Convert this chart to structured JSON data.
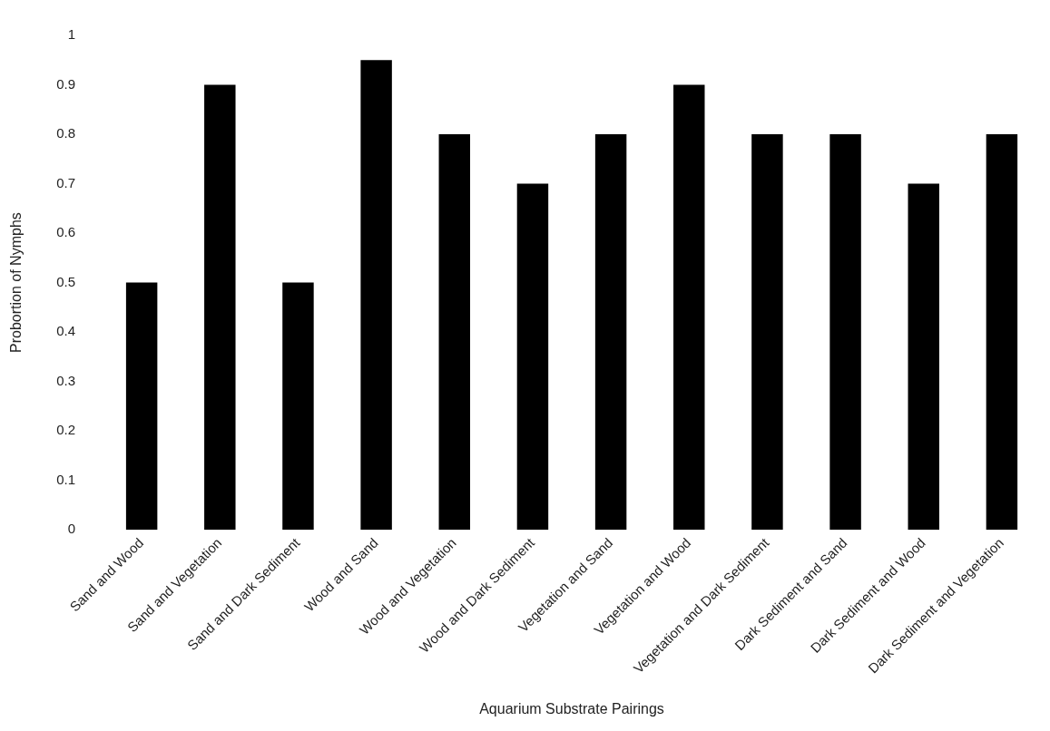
{
  "chart_data": {
    "type": "bar",
    "xlabel": "Aquarium Substrate Pairings",
    "ylabel": "Probortion of Nymphs",
    "categories": [
      "Sand and Wood",
      "Sand and Vegetation",
      "Sand and Dark Sediment",
      "Wood and Sand",
      "Wood and Vegetation",
      "Wood and Dark Sediment",
      "Vegetation and Sand",
      "Vegetation and Wood",
      "Vegetation and Dark Sediment",
      "Dark Sediment and Sand",
      "Dark Sediment and Wood",
      "Dark Sediment and Vegetation"
    ],
    "values": [
      0.5,
      0.9,
      0.5,
      0.95,
      0.8,
      0.7,
      0.8,
      0.9,
      0.8,
      0.8,
      0.7,
      0.8
    ],
    "color": "#000000",
    "ylim": [
      0,
      1
    ],
    "yticks": [
      0,
      0.1,
      0.2,
      0.3,
      0.4,
      0.5,
      0.6,
      0.7,
      0.8,
      0.9,
      1
    ],
    "grid": false,
    "legend": false
  }
}
